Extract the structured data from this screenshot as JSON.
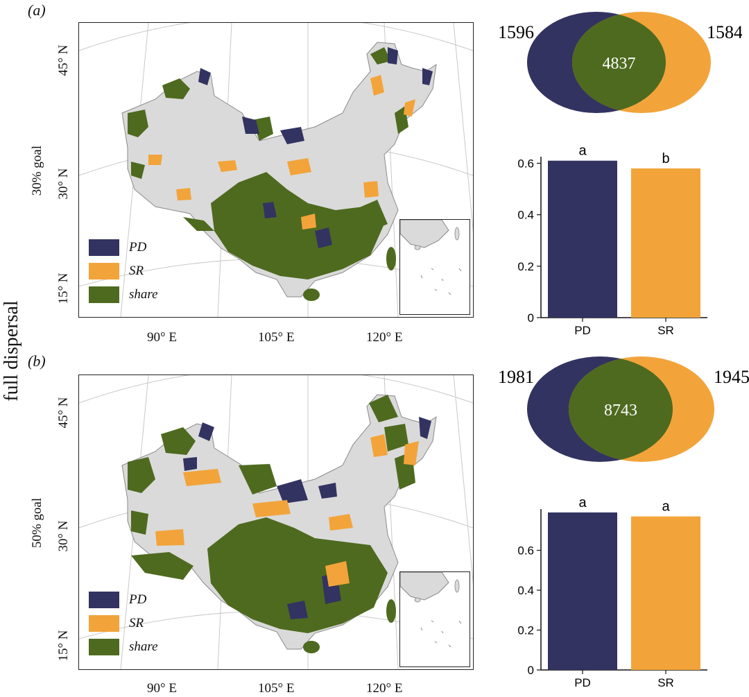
{
  "figure": {
    "side_title": "full dispersal",
    "colors": {
      "PD": "#323361",
      "SR": "#F2A43A",
      "share": "#4E6A1F",
      "land": "#DADADA"
    }
  },
  "panels": [
    {
      "label": "(a)",
      "goal_label": "30% goal",
      "lat_labels": [
        "45° N",
        "30° N",
        "15° N"
      ],
      "lon_labels": [
        "90° E",
        "105° E",
        "120° E"
      ],
      "legend": [
        "PD",
        "SR",
        "share"
      ]
    },
    {
      "label": "(b)",
      "goal_label": "50% goal",
      "lat_labels": [
        "45° N",
        "30° N",
        "15° N"
      ],
      "lon_labels": [
        "90° E",
        "105° E",
        "120° E"
      ],
      "legend": [
        "PD",
        "SR",
        "share"
      ]
    }
  ],
  "chart_data": [
    {
      "type": "venn",
      "sets": [
        "PD",
        "SR"
      ],
      "only_PD": 1596,
      "only_SR": 1584,
      "overlap": 4837
    },
    {
      "type": "bar",
      "categories": [
        "PD",
        "SR"
      ],
      "values": [
        0.61,
        0.58
      ],
      "letters": [
        "a",
        "b"
      ],
      "ylim": [
        0,
        0.62
      ],
      "yticks": [
        0,
        0.2,
        0.4,
        0.6
      ],
      "ytick_labels": [
        "0",
        "0.2",
        "0.4",
        "0.6"
      ]
    },
    {
      "type": "venn",
      "sets": [
        "PD",
        "SR"
      ],
      "only_PD": 1981,
      "only_SR": 1945,
      "overlap": 8743
    },
    {
      "type": "bar",
      "categories": [
        "PD",
        "SR"
      ],
      "values": [
        0.79,
        0.77
      ],
      "letters": [
        "a",
        "a"
      ],
      "ylim": [
        0,
        0.8
      ],
      "yticks": [
        0,
        0.2,
        0.4,
        0.6
      ],
      "ytick_labels": [
        "0",
        "0.2",
        "0.4",
        "0.6"
      ]
    }
  ]
}
